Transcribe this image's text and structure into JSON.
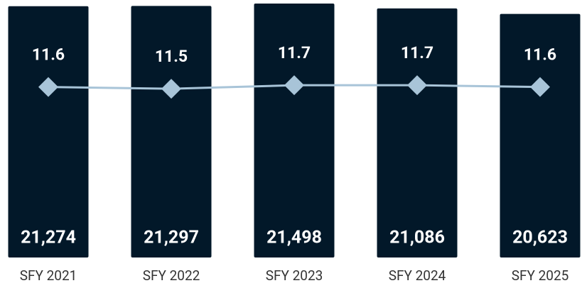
{
  "chart_data": {
    "type": "combo",
    "categories": [
      "SFY 2021",
      "SFY 2022",
      "SFY 2023",
      "SFY 2024",
      "SFY 2025"
    ],
    "series": [
      {
        "type": "bar",
        "color": "#021829",
        "values": [
          21274,
          21297,
          21498,
          21086,
          20623
        ],
        "value_labels": [
          "21,274",
          "21,297",
          "21,498",
          "21,086",
          "20,623"
        ]
      },
      {
        "type": "line",
        "color": "#a8c4d8",
        "axis": "y2",
        "values": [
          11.6,
          11.5,
          11.7,
          11.7,
          11.6
        ]
      }
    ],
    "ylim": [
      0,
      21500
    ],
    "y2lim": [
      2,
      16.3
    ]
  }
}
